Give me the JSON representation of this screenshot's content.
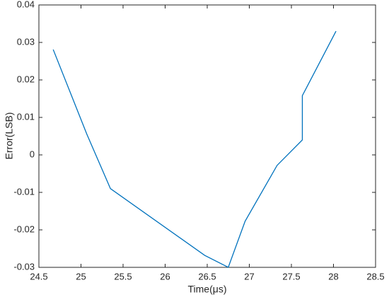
{
  "chart_data": {
    "type": "line",
    "x_label": "Time(μs)",
    "y_label": "Error(LSB)",
    "series": [
      {
        "name": "error",
        "color": "#0072bd",
        "x": [
          24.67,
          25.07,
          25.35,
          26.47,
          26.75,
          26.95,
          27.33,
          27.63,
          27.63,
          28.03
        ],
        "values": [
          0.0281,
          0.0055,
          -0.009,
          -0.0268,
          -0.03,
          -0.0177,
          -0.0028,
          0.004,
          0.0158,
          0.033
        ]
      }
    ],
    "xlim": [
      24.5,
      28.5
    ],
    "xticks": [
      24.5,
      25,
      25.5,
      26,
      26.5,
      27,
      27.5,
      28,
      28.5
    ],
    "ylim": [
      -0.03,
      0.04
    ],
    "yticks": [
      -0.03,
      -0.02,
      -0.01,
      0,
      0.01,
      0.02,
      0.03,
      0.04
    ],
    "grid": false
  }
}
